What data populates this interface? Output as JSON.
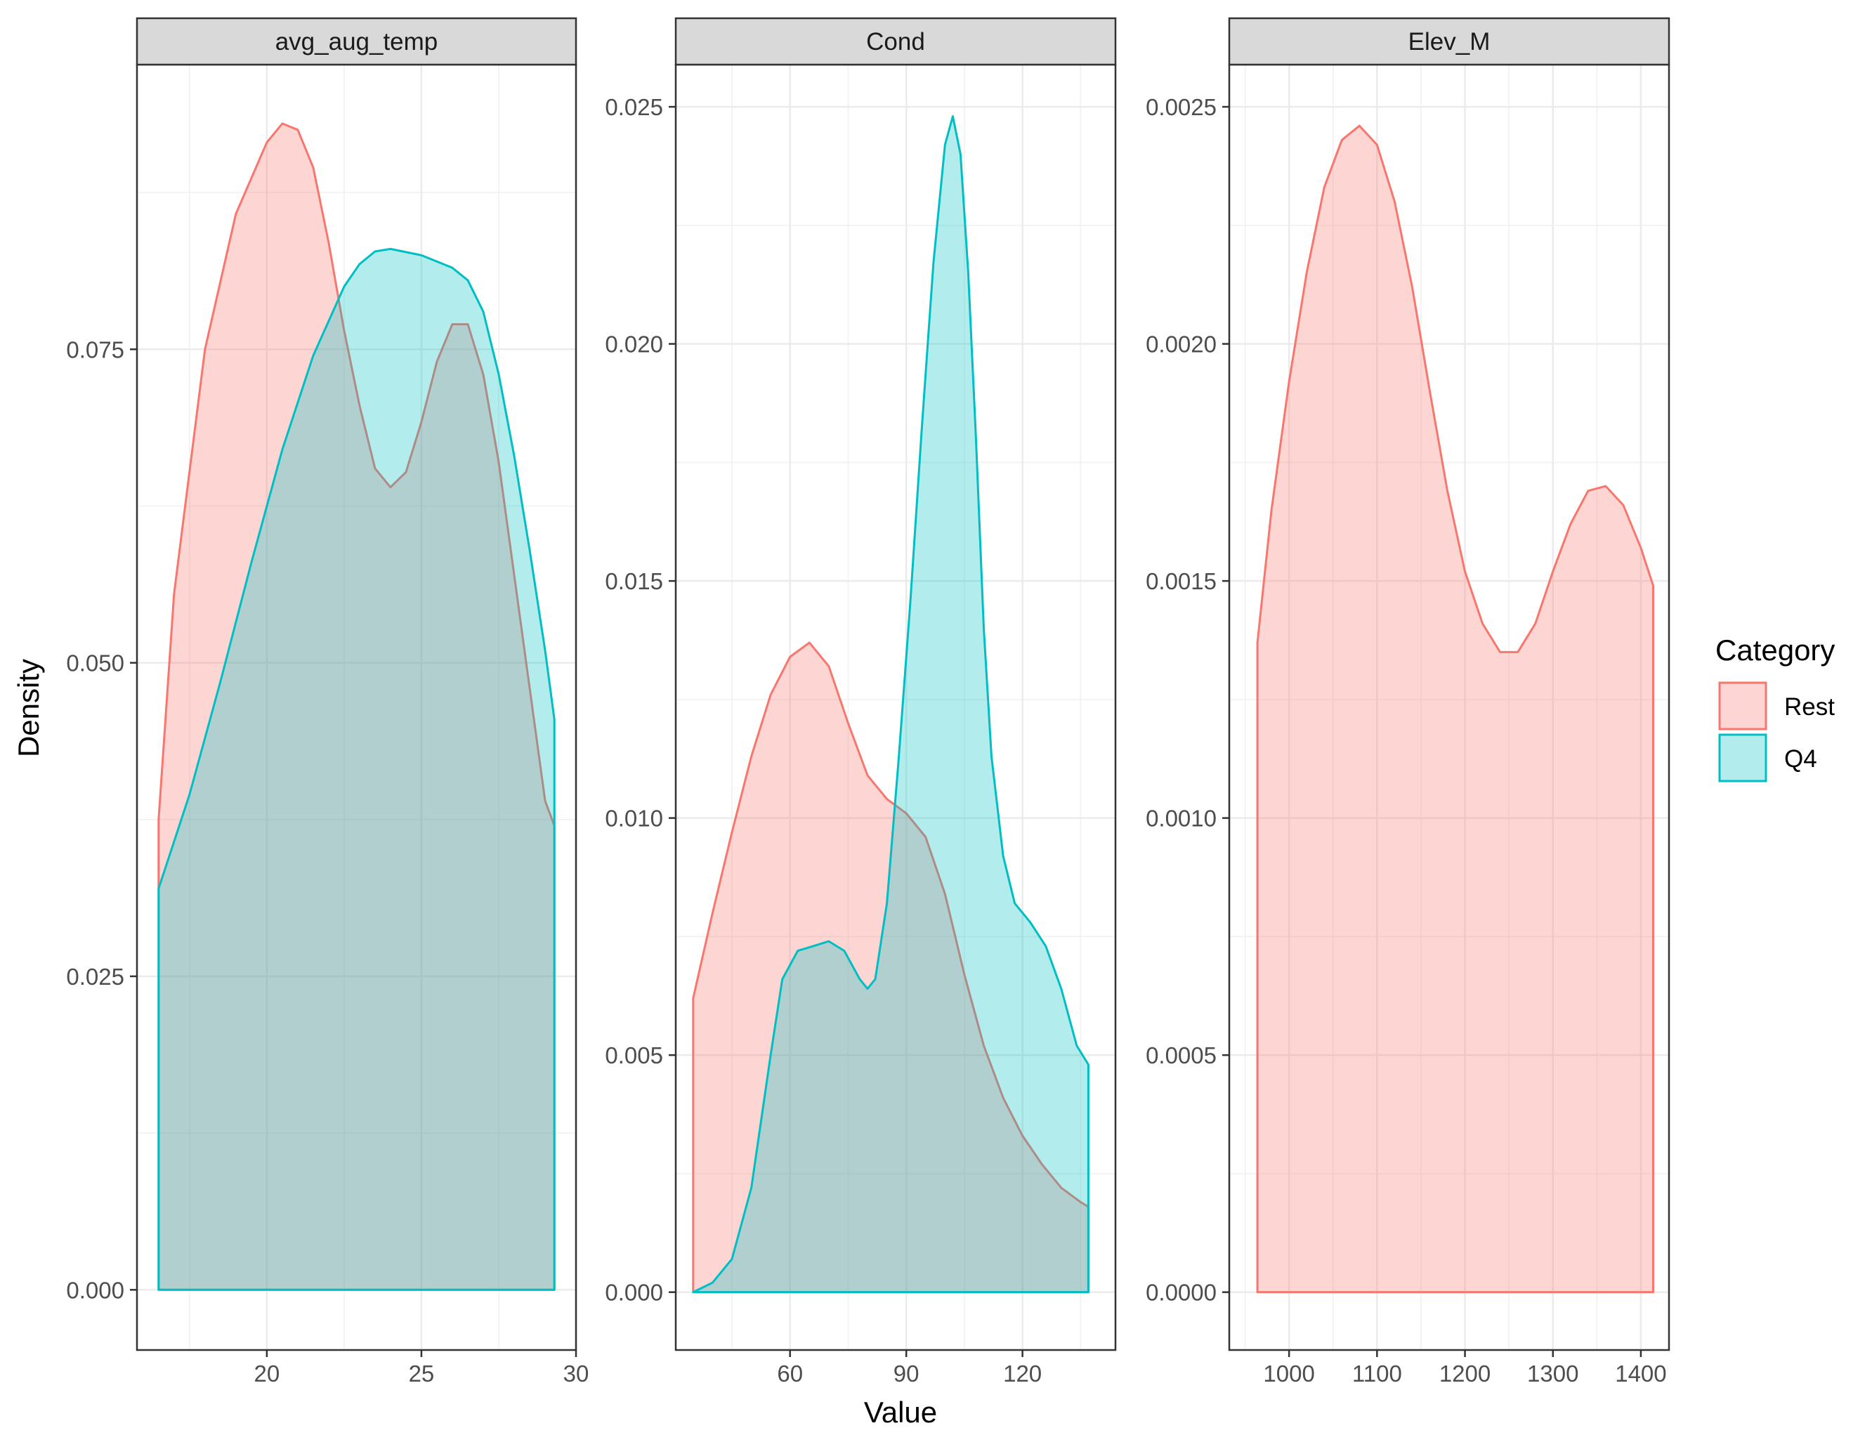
{
  "chart_data": {
    "type": "area",
    "xlabel": "Value",
    "ylabel": "Density",
    "legend": {
      "title": "Category",
      "placement": "right",
      "entries": [
        {
          "name": "Rest",
          "color": "#F8766D"
        },
        {
          "name": "Q4",
          "color": "#00BFC4"
        }
      ]
    },
    "grid": true,
    "panels": [
      {
        "title": "avg_aug_temp",
        "xlim": [
          15.8,
          30
        ],
        "ylim": [
          -0.0048,
          0.0977
        ],
        "xticks": [
          20,
          25,
          30
        ],
        "yticks": [
          0.0,
          0.025,
          0.05,
          0.075
        ],
        "ytick_labels": [
          "0.000",
          "0.025",
          "0.050",
          "0.075"
        ],
        "series": [
          {
            "name": "Rest",
            "x": [
              16.5,
              17.0,
              18.0,
              19.0,
              20.0,
              20.5,
              21.0,
              21.5,
              22.0,
              22.5,
              23.0,
              23.5,
              24.0,
              24.5,
              25.0,
              25.5,
              26.0,
              26.5,
              27.0,
              27.5,
              28.0,
              28.5,
              29.0,
              29.3
            ],
            "y": [
              0.0375,
              0.0555,
              0.075,
              0.0858,
              0.0915,
              0.093,
              0.0925,
              0.0895,
              0.0835,
              0.0765,
              0.0705,
              0.0655,
              0.064,
              0.0652,
              0.0692,
              0.074,
              0.077,
              0.077,
              0.073,
              0.066,
              0.057,
              0.048,
              0.039,
              0.037
            ]
          },
          {
            "name": "Q4",
            "x": [
              16.5,
              17.5,
              18.5,
              19.5,
              20.5,
              21.5,
              22.5,
              23.0,
              23.5,
              24.0,
              25.0,
              26.0,
              26.5,
              27.0,
              27.5,
              28.0,
              28.5,
              29.0,
              29.3
            ],
            "y": [
              0.032,
              0.0395,
              0.0485,
              0.058,
              0.067,
              0.0745,
              0.08,
              0.0818,
              0.0828,
              0.083,
              0.0825,
              0.0815,
              0.0805,
              0.078,
              0.073,
              0.0665,
              0.059,
              0.051,
              0.0455
            ]
          }
        ]
      },
      {
        "title": "Cond",
        "xlim": [
          30.5,
          144
        ],
        "ylim": [
          -0.00122,
          0.02589
        ],
        "xticks": [
          60,
          90,
          120
        ],
        "yticks": [
          0.0,
          0.005,
          0.01,
          0.015,
          0.02,
          0.025
        ],
        "ytick_labels": [
          "0.000",
          "0.005",
          "0.010",
          "0.015",
          "0.020",
          "0.025"
        ],
        "series": [
          {
            "name": "Rest",
            "x": [
              35,
              40,
              45,
              50,
              55,
              60,
              65,
              70,
              75,
              80,
              85,
              90,
              95,
              100,
              105,
              110,
              115,
              120,
              125,
              130,
              135,
              137
            ],
            "y": [
              0.0062,
              0.008,
              0.0097,
              0.0113,
              0.0126,
              0.0134,
              0.0137,
              0.0132,
              0.012,
              0.0109,
              0.0104,
              0.0101,
              0.0096,
              0.0084,
              0.0067,
              0.0052,
              0.0041,
              0.0033,
              0.0027,
              0.0022,
              0.0019,
              0.0018
            ]
          },
          {
            "name": "Q4",
            "x": [
              35,
              40,
              45,
              50,
              55,
              58,
              62,
              66,
              70,
              74,
              78,
              80,
              82,
              85,
              88,
              91,
              94,
              97,
              100,
              102,
              104,
              106,
              108,
              110,
              112,
              115,
              118,
              122,
              126,
              130,
              134,
              137
            ],
            "y": [
              0.0,
              0.0002,
              0.0007,
              0.0022,
              0.005,
              0.0066,
              0.0072,
              0.0073,
              0.0074,
              0.0072,
              0.0066,
              0.0064,
              0.0066,
              0.0082,
              0.0112,
              0.0145,
              0.0182,
              0.0217,
              0.0242,
              0.0248,
              0.024,
              0.0215,
              0.018,
              0.014,
              0.0113,
              0.0092,
              0.0082,
              0.0078,
              0.0073,
              0.0064,
              0.0052,
              0.0048
            ]
          }
        ]
      },
      {
        "title": "Elev_M",
        "xlim": [
          932,
          1432
        ],
        "ylim": [
          -0.000122,
          0.002589
        ],
        "xticks": [
          1000,
          1100,
          1200,
          1300,
          1400
        ],
        "yticks": [
          0.0,
          0.0005,
          0.001,
          0.0015,
          0.002,
          0.0025
        ],
        "ytick_labels": [
          "0.0000",
          "0.0005",
          "0.0010",
          "0.0015",
          "0.0020",
          "0.0025"
        ],
        "series": [
          {
            "name": "Rest",
            "x": [
              964,
              980,
              1000,
              1020,
              1040,
              1060,
              1080,
              1100,
              1120,
              1140,
              1160,
              1180,
              1200,
              1220,
              1240,
              1260,
              1280,
              1300,
              1320,
              1340,
              1360,
              1380,
              1400,
              1414
            ],
            "y": [
              0.00137,
              0.00165,
              0.00192,
              0.00215,
              0.00233,
              0.00243,
              0.00246,
              0.00242,
              0.0023,
              0.00212,
              0.0019,
              0.00169,
              0.00152,
              0.00141,
              0.00135,
              0.00135,
              0.00141,
              0.00152,
              0.00162,
              0.00169,
              0.0017,
              0.00166,
              0.00157,
              0.00149
            ]
          }
        ]
      }
    ]
  }
}
